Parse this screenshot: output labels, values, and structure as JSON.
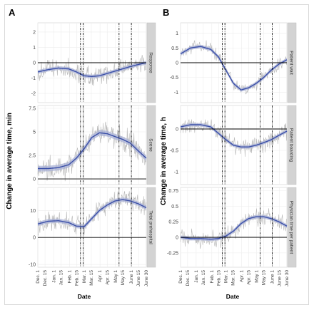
{
  "figure": {
    "panel_letters": [
      "A",
      "B"
    ],
    "left_ylabel": "Change in average time, min",
    "right_ylabel": "Change in average time, h",
    "xlabel": "Date",
    "x_tick_labels": [
      "Dec. 1",
      "Dec. 15",
      "Jan. 1",
      "Jan. 15",
      "Feb. 1",
      "Feb. 15",
      "Mar. 1",
      "Mar. 15",
      "Apr. 1",
      "Apr. 15",
      "May 1",
      "May 15",
      "June 1",
      "June 15",
      "June 30"
    ]
  },
  "colors": {
    "smooth_line": "#3a4fa8",
    "ci_band": "#a9b2d6",
    "raw_series": "#b8b8b8",
    "strip": "#d3d3d3",
    "grid": "#ececec",
    "vline": "#000000"
  },
  "chart_data": [
    {
      "type": "line",
      "panel": "A",
      "strip_label": "Response",
      "ylim": [
        -2.6,
        2.6
      ],
      "yticks": [
        -2,
        -1,
        0,
        1,
        2
      ],
      "x_units": "days since Dec. 1",
      "xlim": [
        0,
        211
      ],
      "reference_lines_days": [
        83,
        88,
        158,
        182
      ],
      "smooth": {
        "x": [
          0,
          20,
          40,
          60,
          75,
          90,
          105,
          120,
          135,
          150,
          165,
          180,
          195,
          211
        ],
        "y": [
          -0.6,
          -0.45,
          -0.35,
          -0.4,
          -0.6,
          -0.85,
          -0.9,
          -0.85,
          -0.7,
          -0.55,
          -0.4,
          -0.25,
          -0.12,
          0.0
        ]
      },
      "ci_halfwidth": 0.12,
      "noise_amplitude": 0.55
    },
    {
      "type": "line",
      "panel": "A",
      "strip_label": "Scene",
      "ylim": [
        -0.6,
        7.8
      ],
      "yticks": [
        0,
        2.5,
        5,
        7.5
      ],
      "x_units": "days since Dec. 1",
      "xlim": [
        0,
        211
      ],
      "reference_lines_days": [
        83,
        88,
        158,
        182
      ],
      "smooth": {
        "x": [
          0,
          20,
          40,
          60,
          75,
          90,
          105,
          120,
          135,
          150,
          165,
          180,
          195,
          211
        ],
        "y": [
          1.1,
          1.1,
          1.2,
          1.5,
          2.2,
          3.2,
          4.4,
          4.9,
          4.8,
          4.5,
          4.2,
          3.8,
          3.0,
          2.2
        ]
      },
      "ci_halfwidth": 0.3,
      "noise_amplitude": 1.1
    },
    {
      "type": "line",
      "panel": "A",
      "strip_label": "Total prehospital",
      "ylim": [
        -11,
        18.5
      ],
      "yticks": [
        -10,
        0,
        10
      ],
      "x_units": "days since Dec. 1",
      "xlim": [
        0,
        211
      ],
      "reference_lines_days": [
        83,
        88,
        158,
        182
      ],
      "smooth": {
        "x": [
          0,
          20,
          40,
          60,
          75,
          90,
          105,
          120,
          135,
          150,
          165,
          180,
          195,
          211
        ],
        "y": [
          5,
          6,
          6.2,
          5.5,
          4.2,
          4.0,
          7.0,
          10,
          12,
          13.5,
          14,
          13.5,
          12.5,
          11
        ]
      },
      "ci_halfwidth": 0.8,
      "noise_amplitude": 3.0
    },
    {
      "type": "line",
      "panel": "B",
      "strip_label": "Patient wait",
      "ylim": [
        -1.35,
        1.35
      ],
      "yticks": [
        -1.0,
        -0.5,
        0.0,
        0.5,
        1.0
      ],
      "x_units": "days since Dec. 1",
      "xlim": [
        0,
        211
      ],
      "reference_lines_days": [
        83,
        88,
        158,
        182
      ],
      "smooth": {
        "x": [
          0,
          20,
          40,
          60,
          75,
          90,
          105,
          120,
          135,
          150,
          165,
          180,
          195,
          211
        ],
        "y": [
          0.3,
          0.5,
          0.55,
          0.45,
          0.2,
          -0.25,
          -0.7,
          -0.92,
          -0.85,
          -0.7,
          -0.5,
          -0.25,
          -0.05,
          0.1
        ]
      },
      "ci_halfwidth": 0.06,
      "noise_amplitude": 0.18
    },
    {
      "type": "line",
      "panel": "B",
      "strip_label": "Patient boarding",
      "ylim": [
        -1.3,
        0.55
      ],
      "yticks": [
        -1.0,
        -0.5,
        0.0
      ],
      "x_units": "days since Dec. 1",
      "xlim": [
        0,
        211
      ],
      "reference_lines_days": [
        83,
        88,
        158,
        182
      ],
      "smooth": {
        "x": [
          0,
          20,
          40,
          60,
          75,
          90,
          105,
          120,
          135,
          150,
          165,
          180,
          195,
          211
        ],
        "y": [
          0.05,
          0.1,
          0.1,
          0.05,
          -0.1,
          -0.25,
          -0.38,
          -0.42,
          -0.42,
          -0.38,
          -0.32,
          -0.25,
          -0.15,
          -0.05
        ]
      },
      "ci_halfwidth": 0.04,
      "noise_amplitude": 0.17
    },
    {
      "type": "line",
      "panel": "B",
      "strip_label": "Physician time per patient",
      "ylim": [
        -0.48,
        0.8
      ],
      "yticks": [
        -0.25,
        0.0,
        0.25,
        0.5,
        0.75
      ],
      "x_units": "days since Dec. 1",
      "xlim": [
        0,
        211
      ],
      "reference_lines_days": [
        83,
        88,
        158,
        182
      ],
      "smooth": {
        "x": [
          0,
          20,
          40,
          60,
          75,
          90,
          105,
          120,
          135,
          150,
          165,
          180,
          195,
          211
        ],
        "y": [
          0.0,
          -0.02,
          -0.02,
          -0.03,
          -0.02,
          0.02,
          0.1,
          0.22,
          0.3,
          0.33,
          0.33,
          0.3,
          0.25,
          0.18
        ]
      },
      "ci_halfwidth": 0.03,
      "noise_amplitude": 0.12
    }
  ]
}
